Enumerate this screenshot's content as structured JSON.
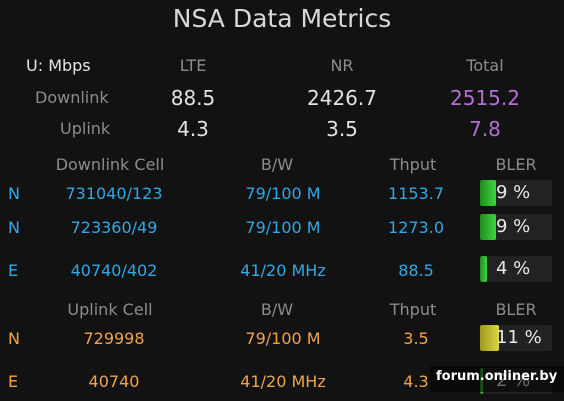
{
  "title": "NSA Data Metrics",
  "summary": {
    "unit_label": "U: Mbps",
    "headers": [
      "LTE",
      "NR",
      "Total"
    ],
    "rows": [
      {
        "label": "Downlink",
        "lte": "88.5",
        "nr": "2426.7",
        "total": "2515.2"
      },
      {
        "label": "Uplink",
        "lte": "4.3",
        "nr": "3.5",
        "total": "7.8"
      }
    ]
  },
  "downlink": {
    "headers": [
      "Downlink Cell",
      "B/W",
      "Thput",
      "BLER"
    ],
    "rows": [
      {
        "type": "N",
        "cell": "731040/123",
        "bw": "79/100 M",
        "thput": "1153.7",
        "bler": "9 %",
        "bler_value": 0.09
      },
      {
        "type": "N",
        "cell": "723360/49",
        "bw": "79/100 M",
        "thput": "1273.0",
        "bler": "9 %",
        "bler_value": 0.09
      },
      {
        "type": "E",
        "cell": "40740/402",
        "bw": "41/20 MHz",
        "thput": "88.5",
        "bler": "4 %",
        "bler_value": 0.04
      }
    ]
  },
  "uplink": {
    "headers": [
      "Uplink Cell",
      "B/W",
      "Thput",
      "BLER"
    ],
    "rows": [
      {
        "type": "N",
        "cell": "729998",
        "bw": "79/100 M",
        "thput": "3.5",
        "bler": "11 %",
        "bler_value": 0.11
      },
      {
        "type": "E",
        "cell": "40740",
        "bw": "41/20 MHz",
        "thput": "4.3",
        "bler": "2 %",
        "bler_value": 0.02
      }
    ]
  },
  "watermark": "forum.onliner.by",
  "colors": {
    "background": "#121212",
    "downlink_text": "#31a8e6",
    "uplink_text": "#f0a44a",
    "total": "#b46fd6",
    "bler_good": "#3fd43f",
    "bler_warn": "#dcd640"
  }
}
